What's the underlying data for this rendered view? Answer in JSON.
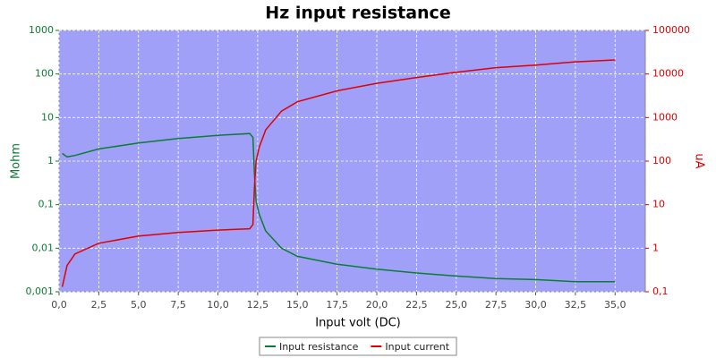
{
  "chart_data": {
    "type": "line",
    "title": "Hz input resistance",
    "xlabel": "Input volt (DC)",
    "ylabel": "Mohm",
    "y2label": "uA",
    "log_y": true,
    "log_y2": true,
    "grid": true,
    "legend": "bottom",
    "background": "#a0a0f8",
    "x": [
      0.2,
      0.5,
      1,
      2.5,
      5,
      7.5,
      10,
      12,
      12.2,
      12.3,
      12.4,
      12.6,
      13,
      14,
      15,
      17.5,
      20,
      22.5,
      25,
      27.5,
      30,
      32.5,
      35
    ],
    "series": [
      {
        "name": "Input resistance",
        "color": "#0a7d32",
        "axis": "y",
        "values": [
          1.5,
          1.25,
          1.35,
          1.9,
          2.6,
          3.3,
          3.9,
          4.3,
          3.5,
          0.5,
          0.12,
          0.06,
          0.025,
          0.01,
          0.0065,
          0.0043,
          0.0033,
          0.0027,
          0.0023,
          0.002,
          0.0019,
          0.0017,
          0.0017
        ]
      },
      {
        "name": "Input current",
        "color": "#e00000",
        "axis": "y2",
        "values": [
          0.13,
          0.4,
          0.74,
          1.3,
          1.9,
          2.3,
          2.6,
          2.8,
          3.5,
          25,
          100,
          210,
          520,
          1400,
          2300,
          4100,
          6100,
          8300,
          11000,
          14000,
          16000,
          19000,
          21000
        ]
      }
    ],
    "xlim": [
      0,
      36.9
    ],
    "xticks": [
      {
        "value": 0,
        "label": "0,0"
      },
      {
        "value": 2.5,
        "label": "2,5"
      },
      {
        "value": 5,
        "label": "5,0"
      },
      {
        "value": 7.5,
        "label": "7,5"
      },
      {
        "value": 10,
        "label": "10,0"
      },
      {
        "value": 12.5,
        "label": "12,5"
      },
      {
        "value": 15,
        "label": "15,0"
      },
      {
        "value": 17.5,
        "label": "17,5"
      },
      {
        "value": 20,
        "label": "20,0"
      },
      {
        "value": 22.5,
        "label": "22,5"
      },
      {
        "value": 25,
        "label": "25,0"
      },
      {
        "value": 27.5,
        "label": "27,5"
      },
      {
        "value": 30,
        "label": "30,0"
      },
      {
        "value": 32.5,
        "label": "32,5"
      },
      {
        "value": 35,
        "label": "35,0"
      }
    ],
    "ylim": [
      0.001,
      1000
    ],
    "yticks": [
      {
        "value": 0.001,
        "label": "0,001"
      },
      {
        "value": 0.01,
        "label": "0,01"
      },
      {
        "value": 0.1,
        "label": "0,1"
      },
      1,
      10,
      100,
      1000
    ],
    "y2lim": [
      0.1,
      100000
    ],
    "y2ticks": [
      {
        "value": 0.1,
        "label": "0,1"
      },
      1,
      10,
      100,
      1000,
      10000,
      100000
    ]
  }
}
